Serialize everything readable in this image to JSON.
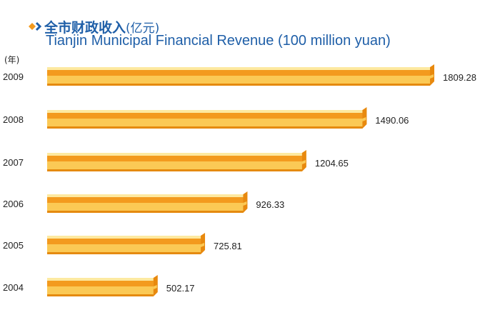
{
  "chart_data": {
    "type": "bar",
    "orientation": "horizontal",
    "title_cn": "全市财政收入",
    "unit_cn": "(亿元)",
    "title": "Tianjin Municipal Financial Revenue (100 million yuan)",
    "ylabel": "(年)",
    "xlabel": "",
    "categories": [
      "2009",
      "2008",
      "2007",
      "2006",
      "2005",
      "2004"
    ],
    "values": [
      1809.28,
      1490.06,
      1204.65,
      926.33,
      725.81,
      502.17
    ],
    "value_labels": [
      "1809.28",
      "1490.06",
      "1204.65",
      "926.33",
      "725.81",
      "502.17"
    ],
    "xlim": [
      0,
      1809.28
    ],
    "grid": false,
    "colors": {
      "bar_main": "#f39a1e",
      "bar_light": "#fbc955",
      "bar_highlight": "#fde9a0",
      "title": "#1f5fa8",
      "bullet_orange": "#f39a1e"
    }
  }
}
